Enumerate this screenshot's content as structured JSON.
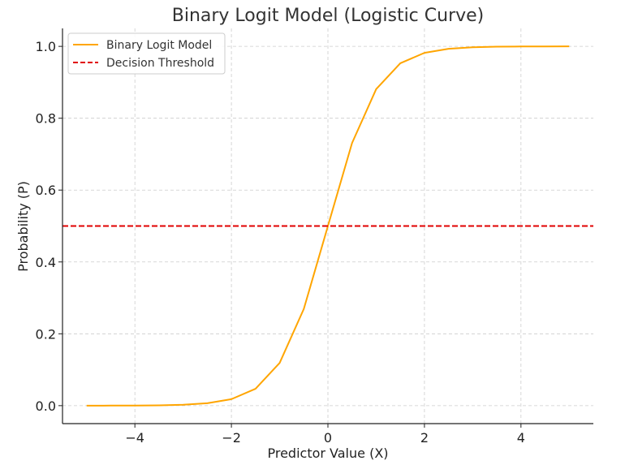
{
  "chart_data": {
    "type": "line",
    "title": "Binary Logit Model (Logistic Curve)",
    "xlabel": "Predictor Value (X)",
    "ylabel": "Probability (P)",
    "xlim": [
      -5.5,
      5.5
    ],
    "ylim": [
      -0.05,
      1.05
    ],
    "x_ticks": [
      -4,
      -2,
      0,
      2,
      4
    ],
    "x_tick_labels": [
      "−4",
      "−2",
      "0",
      "2",
      "4"
    ],
    "y_ticks": [
      0.0,
      0.2,
      0.4,
      0.6,
      0.8,
      1.0
    ],
    "y_tick_labels": [
      "0.0",
      "0.2",
      "0.4",
      "0.6",
      "0.8",
      "1.0"
    ],
    "grid": true,
    "legend_position": "top-left",
    "series": [
      {
        "name": "Binary Logit Model",
        "color": "#ffa500",
        "style": "solid",
        "x": [
          -5,
          -4.5,
          -4,
          -3.5,
          -3,
          -2.5,
          -2,
          -1.5,
          -1,
          -0.5,
          0,
          0.5,
          1,
          1.5,
          2,
          2.5,
          3,
          3.5,
          4,
          4.5,
          5
        ],
        "y": [
          5e-05,
          0.00012,
          0.00034,
          0.00091,
          0.0025,
          0.0067,
          0.018,
          0.047,
          0.119,
          0.269,
          0.5,
          0.731,
          0.881,
          0.953,
          0.982,
          0.9933,
          0.9975,
          0.99909,
          0.99966,
          0.99988,
          0.99995
        ]
      },
      {
        "name": "Decision Threshold",
        "color": "#e00000",
        "style": "dashed",
        "y_constant": 0.5
      }
    ]
  }
}
